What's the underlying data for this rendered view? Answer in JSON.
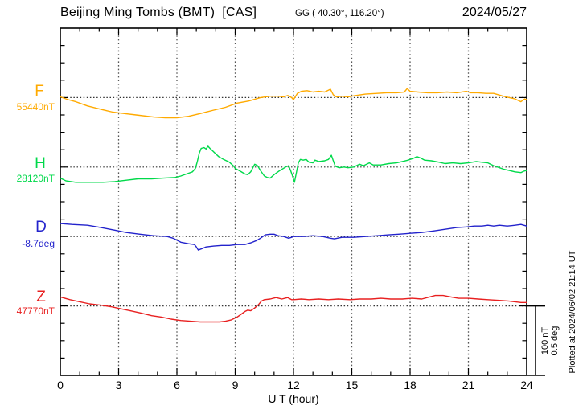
{
  "header": {
    "station_title": "Beijing Ming Tombs (BMT)  [CAS]",
    "gg_coords": "GG ( 40.30°, 116.20°)",
    "date": "2024/05/27"
  },
  "component_labels": [
    {
      "letter": "F",
      "value": "55440nT"
    },
    {
      "letter": "H",
      "value": "28120nT"
    },
    {
      "letter": "D",
      "value": "-8.7deg"
    },
    {
      "letter": "Z",
      "value": "47770nT"
    }
  ],
  "x_axis": {
    "label": "U T (hour)",
    "ticks": [
      "0",
      "3",
      "6",
      "9",
      "12",
      "15",
      "18",
      "21",
      "24"
    ]
  },
  "scale_bar": {
    "line1": "100 nT",
    "line2": "0.5 deg"
  },
  "plotted_at": "Plotted at 2024/06/02 21:14 UT",
  "colors": {
    "F": "#ffaa00",
    "H": "#00d94a",
    "D": "#2323cc",
    "Z": "#e82020",
    "frame": "#000000",
    "grid_vertical": "#555555",
    "grid_baseline": "#333333"
  },
  "chart_data": {
    "type": "line",
    "title": "Beijing Ming Tombs (BMT) [CAS]",
    "xlabel": "U T (hour)",
    "x_range": [
      0,
      24
    ],
    "x_ticks": [
      0,
      3,
      6,
      9,
      12,
      15,
      18,
      21,
      24
    ],
    "grid": "dotted every 3 hours; dotted horizontal baseline per component",
    "legend_position": "left margin (component letters with baseline values)",
    "scale_note": "vertical scale: 100 nT or 0.5 deg per 4 minor divisions (25 nT per tick)",
    "series": [
      {
        "name": "F",
        "unit": "nT",
        "baseline": 55440,
        "points": [
          [
            0.0,
            55441
          ],
          [
            0.4,
            55437
          ],
          [
            0.8,
            55434
          ],
          [
            1.4,
            55428
          ],
          [
            2.1,
            55423
          ],
          [
            2.7,
            55419
          ],
          [
            3.3,
            55417
          ],
          [
            3.9,
            55415
          ],
          [
            4.8,
            55412
          ],
          [
            5.4,
            55411
          ],
          [
            6.0,
            55411
          ],
          [
            6.6,
            55413
          ],
          [
            7.2,
            55417
          ],
          [
            7.9,
            55422
          ],
          [
            8.5,
            55426
          ],
          [
            9.1,
            55432
          ],
          [
            9.7,
            55435
          ],
          [
            10.3,
            55440
          ],
          [
            10.8,
            55442
          ],
          [
            11.2,
            55442
          ],
          [
            11.5,
            55441
          ],
          [
            11.7,
            55443
          ],
          [
            11.9,
            55440
          ],
          [
            12.0,
            55437
          ],
          [
            12.2,
            55446
          ],
          [
            12.4,
            55449
          ],
          [
            12.7,
            55450
          ],
          [
            13.0,
            55448
          ],
          [
            13.3,
            55449
          ],
          [
            13.6,
            55448
          ],
          [
            13.9,
            55452
          ],
          [
            14.05,
            55444
          ],
          [
            14.2,
            55441
          ],
          [
            14.5,
            55442
          ],
          [
            14.8,
            55441
          ],
          [
            15.2,
            55443
          ],
          [
            15.7,
            55445
          ],
          [
            16.3,
            55446
          ],
          [
            16.8,
            55447
          ],
          [
            17.3,
            55447
          ],
          [
            17.7,
            55448
          ],
          [
            17.85,
            55453
          ],
          [
            18.0,
            55449
          ],
          [
            18.4,
            55448
          ],
          [
            18.9,
            55447
          ],
          [
            19.4,
            55447
          ],
          [
            19.9,
            55448
          ],
          [
            20.4,
            55447
          ],
          [
            20.9,
            55449
          ],
          [
            21.1,
            55447
          ],
          [
            21.5,
            55447
          ],
          [
            21.9,
            55446
          ],
          [
            22.3,
            55446
          ],
          [
            22.8,
            55442
          ],
          [
            23.1,
            55440
          ],
          [
            23.4,
            55438
          ],
          [
            23.7,
            55434
          ],
          [
            23.9,
            55438
          ],
          [
            24.0,
            55437
          ]
        ]
      },
      {
        "name": "H",
        "unit": "nT",
        "baseline": 28120,
        "points": [
          [
            0.0,
            28104
          ],
          [
            0.3,
            28100
          ],
          [
            0.8,
            28098
          ],
          [
            1.5,
            28098
          ],
          [
            2.2,
            28098
          ],
          [
            2.8,
            28099
          ],
          [
            3.4,
            28101
          ],
          [
            4.0,
            28103
          ],
          [
            4.7,
            28103
          ],
          [
            5.3,
            28104
          ],
          [
            5.9,
            28105
          ],
          [
            6.2,
            28107
          ],
          [
            6.5,
            28110
          ],
          [
            6.8,
            28113
          ],
          [
            6.95,
            28118
          ],
          [
            7.05,
            28128
          ],
          [
            7.15,
            28140
          ],
          [
            7.25,
            28147
          ],
          [
            7.4,
            28148
          ],
          [
            7.5,
            28146
          ],
          [
            7.6,
            28150
          ],
          [
            7.7,
            28147
          ],
          [
            7.85,
            28143
          ],
          [
            8.0,
            28139
          ],
          [
            8.15,
            28135
          ],
          [
            8.4,
            28131
          ],
          [
            8.7,
            28127
          ],
          [
            8.9,
            28122
          ],
          [
            9.0,
            28118
          ],
          [
            9.2,
            28115
          ],
          [
            9.5,
            28110
          ],
          [
            9.65,
            28109
          ],
          [
            9.8,
            28113
          ],
          [
            10.0,
            28124
          ],
          [
            10.15,
            28122
          ],
          [
            10.3,
            28115
          ],
          [
            10.5,
            28107
          ],
          [
            10.65,
            28105
          ],
          [
            10.8,
            28104
          ],
          [
            11.0,
            28109
          ],
          [
            11.3,
            28115
          ],
          [
            11.6,
            28120
          ],
          [
            11.75,
            28122
          ],
          [
            11.85,
            28115
          ],
          [
            11.95,
            28107
          ],
          [
            12.05,
            28098
          ],
          [
            12.15,
            28112
          ],
          [
            12.25,
            28126
          ],
          [
            12.35,
            28131
          ],
          [
            12.5,
            28130
          ],
          [
            12.65,
            28131
          ],
          [
            12.8,
            28127
          ],
          [
            13.0,
            28126
          ],
          [
            13.1,
            28130
          ],
          [
            13.3,
            28128
          ],
          [
            13.6,
            28129
          ],
          [
            13.8,
            28131
          ],
          [
            13.95,
            28137
          ],
          [
            14.05,
            28129
          ],
          [
            14.15,
            28121
          ],
          [
            14.35,
            28119
          ],
          [
            14.6,
            28120
          ],
          [
            14.8,
            28119
          ],
          [
            15.1,
            28120
          ],
          [
            15.4,
            28124
          ],
          [
            15.6,
            28122
          ],
          [
            15.9,
            28126
          ],
          [
            16.1,
            28123
          ],
          [
            16.5,
            28123
          ],
          [
            16.9,
            28125
          ],
          [
            17.3,
            28126
          ],
          [
            17.6,
            28128
          ],
          [
            17.9,
            28130
          ],
          [
            18.2,
            28133
          ],
          [
            18.35,
            28135
          ],
          [
            18.55,
            28133
          ],
          [
            18.75,
            28130
          ],
          [
            19.1,
            28129
          ],
          [
            19.5,
            28127
          ],
          [
            19.8,
            28125
          ],
          [
            20.2,
            28126
          ],
          [
            20.6,
            28125
          ],
          [
            21.0,
            28126
          ],
          [
            21.4,
            28128
          ],
          [
            21.7,
            28127
          ],
          [
            22.0,
            28126
          ],
          [
            22.3,
            28122
          ],
          [
            22.5,
            28120
          ],
          [
            22.8,
            28117
          ],
          [
            23.1,
            28115
          ],
          [
            23.4,
            28113
          ],
          [
            23.7,
            28112
          ],
          [
            23.85,
            28114
          ],
          [
            24.0,
            28115
          ]
        ]
      },
      {
        "name": "D",
        "unit": "deg",
        "baseline": -8.7,
        "points": [
          [
            0.0,
            -8.607
          ],
          [
            0.6,
            -8.613
          ],
          [
            1.4,
            -8.619
          ],
          [
            2.1,
            -8.636
          ],
          [
            2.8,
            -8.654
          ],
          [
            3.4,
            -8.671
          ],
          [
            4.1,
            -8.683
          ],
          [
            4.8,
            -8.694
          ],
          [
            5.5,
            -8.7
          ],
          [
            5.8,
            -8.712
          ],
          [
            6.2,
            -8.741
          ],
          [
            6.6,
            -8.752
          ],
          [
            6.9,
            -8.758
          ],
          [
            7.0,
            -8.775
          ],
          [
            7.1,
            -8.798
          ],
          [
            7.3,
            -8.787
          ],
          [
            7.5,
            -8.775
          ],
          [
            7.9,
            -8.769
          ],
          [
            8.3,
            -8.764
          ],
          [
            8.7,
            -8.764
          ],
          [
            9.1,
            -8.758
          ],
          [
            9.5,
            -8.758
          ],
          [
            9.8,
            -8.746
          ],
          [
            10.1,
            -8.729
          ],
          [
            10.3,
            -8.712
          ],
          [
            10.55,
            -8.688
          ],
          [
            10.8,
            -8.683
          ],
          [
            11.0,
            -8.683
          ],
          [
            11.2,
            -8.694
          ],
          [
            11.5,
            -8.7
          ],
          [
            11.75,
            -8.712
          ],
          [
            11.9,
            -8.706
          ],
          [
            12.0,
            -8.7
          ],
          [
            12.5,
            -8.7
          ],
          [
            13.0,
            -8.694
          ],
          [
            13.5,
            -8.7
          ],
          [
            13.9,
            -8.712
          ],
          [
            14.1,
            -8.717
          ],
          [
            14.5,
            -8.706
          ],
          [
            15.1,
            -8.706
          ],
          [
            15.7,
            -8.7
          ],
          [
            16.3,
            -8.694
          ],
          [
            16.9,
            -8.688
          ],
          [
            17.4,
            -8.683
          ],
          [
            18.0,
            -8.677
          ],
          [
            18.6,
            -8.671
          ],
          [
            19.2,
            -8.66
          ],
          [
            19.8,
            -8.648
          ],
          [
            20.4,
            -8.636
          ],
          [
            20.9,
            -8.631
          ],
          [
            21.3,
            -8.625
          ],
          [
            21.7,
            -8.625
          ],
          [
            22.0,
            -8.619
          ],
          [
            22.3,
            -8.625
          ],
          [
            22.6,
            -8.619
          ],
          [
            23.0,
            -8.625
          ],
          [
            23.4,
            -8.619
          ],
          [
            23.7,
            -8.613
          ],
          [
            24.0,
            -8.625
          ]
        ]
      },
      {
        "name": "Z",
        "unit": "nT",
        "baseline": 47770,
        "points": [
          [
            0.0,
            47783
          ],
          [
            0.5,
            47779
          ],
          [
            1.0,
            47776
          ],
          [
            1.5,
            47773
          ],
          [
            2.1,
            47771
          ],
          [
            2.6,
            47769
          ],
          [
            3.1,
            47766
          ],
          [
            3.6,
            47763
          ],
          [
            4.1,
            47760
          ],
          [
            4.7,
            47756
          ],
          [
            5.2,
            47754
          ],
          [
            5.7,
            47751
          ],
          [
            6.2,
            47749
          ],
          [
            6.7,
            47748
          ],
          [
            7.2,
            47747
          ],
          [
            7.7,
            47747
          ],
          [
            8.2,
            47747
          ],
          [
            8.5,
            47748
          ],
          [
            8.8,
            47750
          ],
          [
            9.1,
            47754
          ],
          [
            9.3,
            47758
          ],
          [
            9.5,
            47762
          ],
          [
            9.65,
            47764
          ],
          [
            9.8,
            47763
          ],
          [
            10.0,
            47767
          ],
          [
            10.2,
            47772
          ],
          [
            10.35,
            47777
          ],
          [
            10.5,
            47779
          ],
          [
            10.8,
            47780
          ],
          [
            11.1,
            47782
          ],
          [
            11.4,
            47780
          ],
          [
            11.7,
            47782
          ],
          [
            11.9,
            47779
          ],
          [
            12.0,
            47779
          ],
          [
            12.4,
            47780
          ],
          [
            12.8,
            47779
          ],
          [
            13.3,
            47780
          ],
          [
            13.8,
            47779
          ],
          [
            14.3,
            47780
          ],
          [
            14.9,
            47779
          ],
          [
            15.4,
            47780
          ],
          [
            16.0,
            47780
          ],
          [
            16.5,
            47781
          ],
          [
            17.0,
            47780
          ],
          [
            17.6,
            47780
          ],
          [
            18.1,
            47781
          ],
          [
            18.6,
            47780
          ],
          [
            19.0,
            47783
          ],
          [
            19.3,
            47785
          ],
          [
            19.7,
            47785
          ],
          [
            20.1,
            47783
          ],
          [
            20.5,
            47781
          ],
          [
            21.0,
            47781
          ],
          [
            21.5,
            47780
          ],
          [
            22.0,
            47779
          ],
          [
            22.6,
            47778
          ],
          [
            23.1,
            47777
          ],
          [
            23.4,
            47776
          ],
          [
            23.7,
            47775
          ],
          [
            24.0,
            47775
          ]
        ]
      }
    ]
  }
}
